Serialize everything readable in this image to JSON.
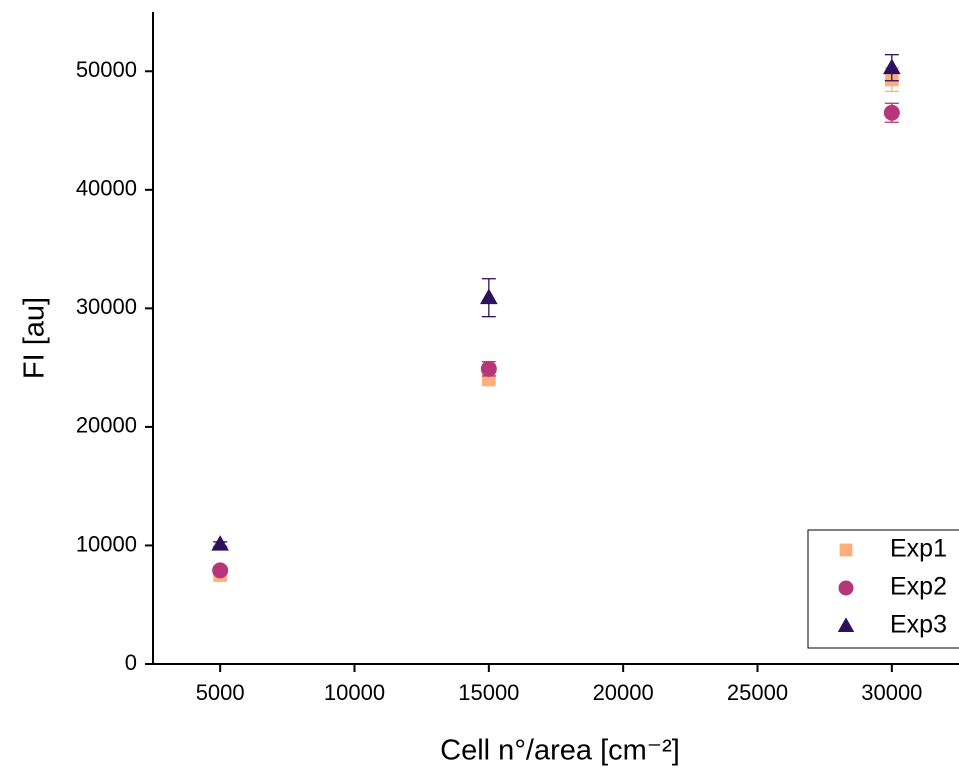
{
  "chart_data": {
    "type": "scatter",
    "xlabel": "Cell n°/area [cm⁻²]",
    "ylabel": "FI [au]",
    "xlim": [
      2500,
      32500
    ],
    "ylim": [
      0,
      55000
    ],
    "xticks": [
      5000,
      10000,
      15000,
      20000,
      25000,
      30000
    ],
    "yticks": [
      0,
      10000,
      20000,
      30000,
      40000,
      50000
    ],
    "legend": "lower right",
    "series": [
      {
        "name": "Exp1",
        "color": "#fcaf7c",
        "marker": "square",
        "x": [
          5000,
          15000,
          30000
        ],
        "values": [
          7500,
          24000,
          49300
        ],
        "errors": [
          200,
          300,
          1000
        ]
      },
      {
        "name": "Exp2",
        "color": "#b7367a",
        "marker": "circle",
        "x": [
          5000,
          15000,
          30000
        ],
        "values": [
          7900,
          24900,
          46500
        ],
        "errors": [
          300,
          600,
          800
        ]
      },
      {
        "name": "Exp3",
        "color": "#2c115f",
        "marker": "triangle",
        "x": [
          5000,
          15000,
          30000
        ],
        "values": [
          10100,
          30900,
          50300
        ],
        "errors": [
          200,
          1600,
          1100
        ]
      }
    ]
  }
}
